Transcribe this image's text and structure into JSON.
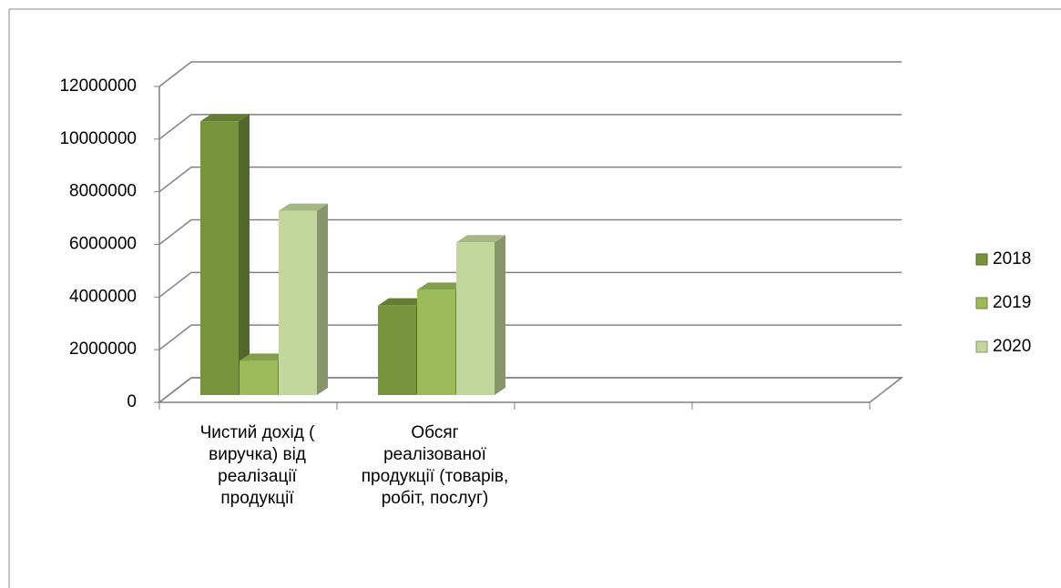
{
  "chart_data": {
    "type": "bar3d",
    "categories": [
      "Чистий дохід ( виручка) від реалізації продукції",
      "Обсяг реалізованої продукції (товарів, робіт, послуг)",
      null,
      null
    ],
    "series": [
      {
        "name": "2018",
        "color": "#77933c",
        "values": [
          10400000,
          3400000,
          null,
          null
        ]
      },
      {
        "name": "2019",
        "color": "#9bbb59",
        "values": [
          1300000,
          4000000,
          null,
          null
        ]
      },
      {
        "name": "2020",
        "color": "#c3d69b",
        "values": [
          7000000,
          5800000,
          null,
          null
        ]
      }
    ],
    "ylim": [
      0,
      12000000
    ],
    "yticks": [
      0,
      2000000,
      4000000,
      6000000,
      8000000,
      10000000,
      12000000
    ],
    "grid": true,
    "legend": "right"
  }
}
